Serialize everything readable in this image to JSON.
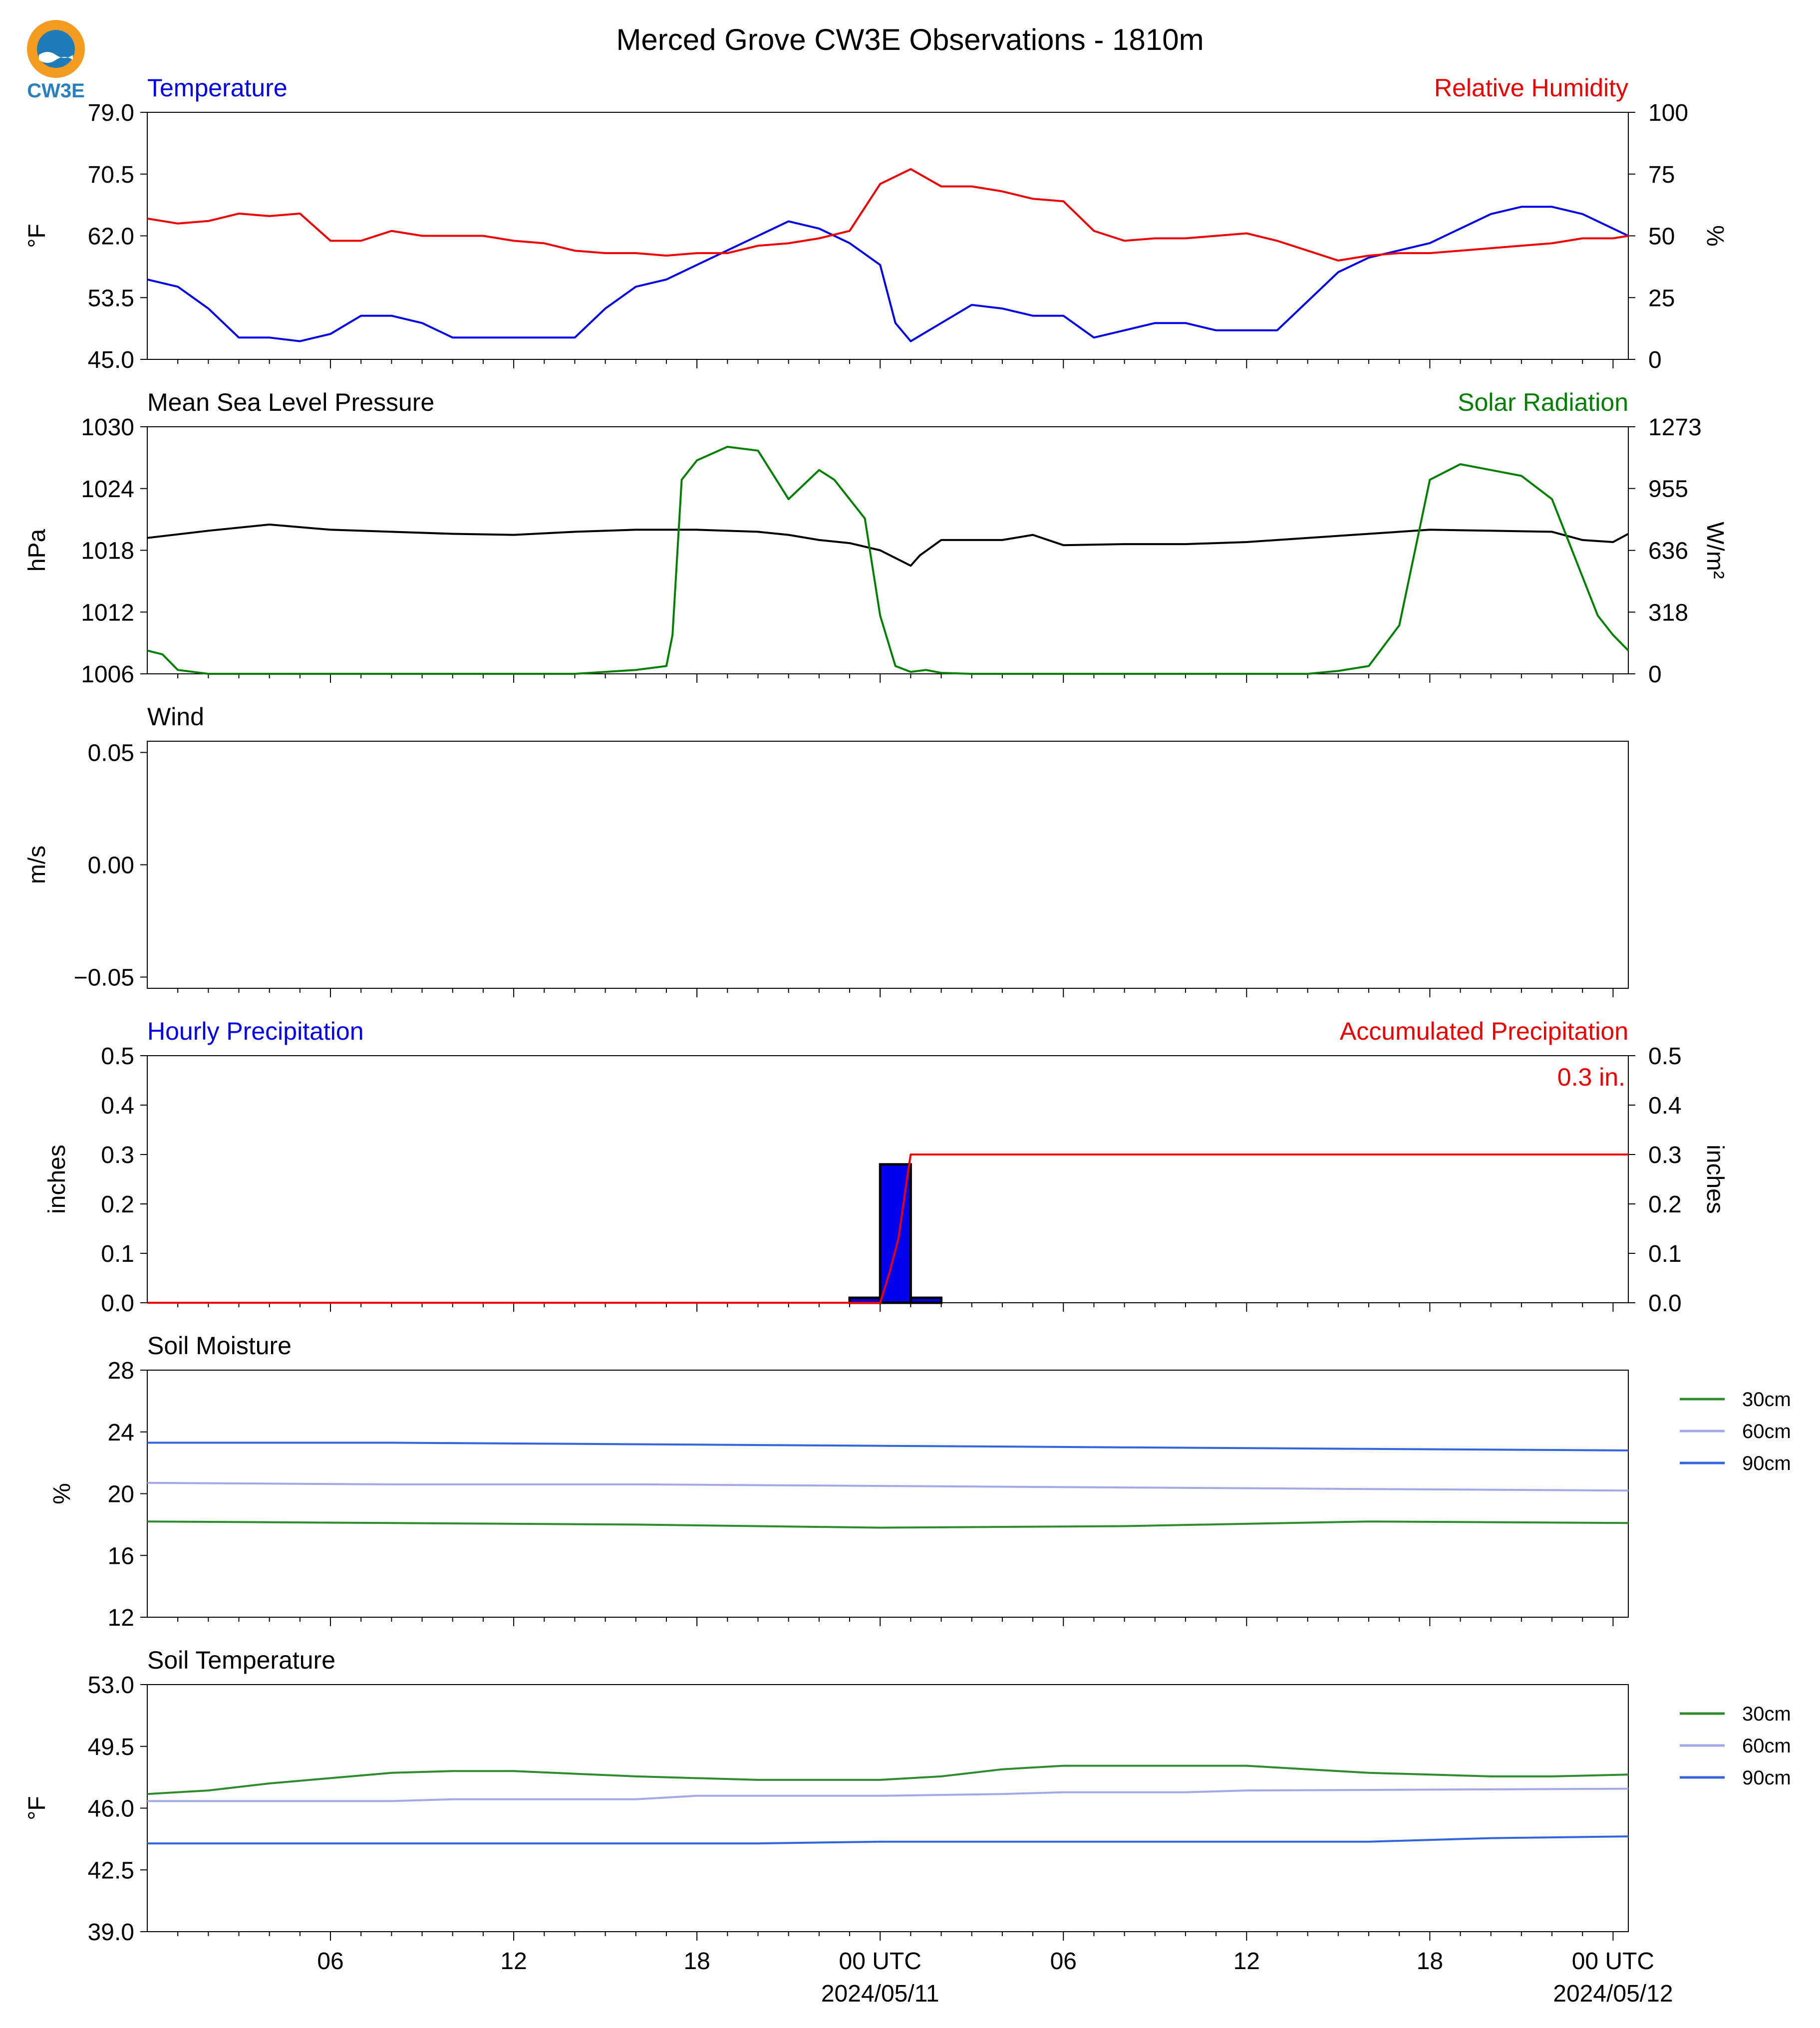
{
  "title": "Merced Grove CW3E Observations - 1810m",
  "logo_text": "CW3E",
  "colors": {
    "temp": "#0000ee",
    "rh": "#ee0000",
    "pressure": "#000000",
    "solar": "#008000",
    "soil30": "#2e8b2e",
    "soil60": "#a3a8e6",
    "soil90": "#3366dd",
    "precip_bar": "#0000ee"
  },
  "x_axis": {
    "start_hour": -2,
    "end_hour": 46.5,
    "ticks": [
      {
        "h": 4,
        "label": "06",
        "sub": ""
      },
      {
        "h": 10,
        "label": "12",
        "sub": ""
      },
      {
        "h": 16,
        "label": "18",
        "sub": ""
      },
      {
        "h": 22,
        "label": "00 UTC",
        "sub": "2024/05/11"
      },
      {
        "h": 28,
        "label": "06",
        "sub": ""
      },
      {
        "h": 34,
        "label": "12",
        "sub": ""
      },
      {
        "h": 40,
        "label": "18",
        "sub": ""
      },
      {
        "h": 46,
        "label": "00 UTC",
        "sub": "2024/05/12"
      }
    ]
  },
  "chart_data": [
    {
      "type": "line",
      "title_left": "Temperature",
      "title_right": "Relative Humidity",
      "ylabel_left": "°F",
      "ylabel_right": "%",
      "ylim_left": [
        45,
        79
      ],
      "yticks_left": [
        "45.0",
        "53.5",
        "62.0",
        "70.5",
        "79.0"
      ],
      "ylim_right": [
        0,
        100
      ],
      "yticks_right": [
        "0",
        "25",
        "50",
        "75",
        "100"
      ],
      "series": [
        {
          "name": "Temperature",
          "axis": "left",
          "color_key": "temp",
          "x": [
            -2,
            -1,
            0,
            1,
            2,
            3,
            4,
            5,
            6,
            7,
            8,
            9,
            10,
            11,
            12,
            13,
            14,
            15,
            16,
            17,
            18,
            19,
            20,
            21,
            22,
            22.5,
            23,
            24,
            25,
            26,
            27,
            28,
            29,
            30,
            31,
            32,
            33,
            34,
            35,
            36,
            37,
            38,
            39,
            40,
            41,
            42,
            43,
            44,
            45,
            46,
            46.5
          ],
          "y": [
            56,
            55,
            52,
            48,
            48,
            47.5,
            48.5,
            51,
            51,
            50,
            48,
            48,
            48,
            48,
            48,
            52,
            55,
            56,
            58,
            60,
            62,
            64,
            63,
            61,
            58,
            50,
            47.5,
            50,
            52.5,
            52,
            51,
            51,
            48,
            49,
            50,
            50,
            49,
            49,
            49,
            53,
            57,
            59,
            60,
            61,
            63,
            65,
            66,
            66,
            65,
            63,
            62
          ]
        },
        {
          "name": "Relative Humidity",
          "axis": "right",
          "color_key": "rh",
          "x": [
            -2,
            -1,
            0,
            1,
            2,
            3,
            4,
            5,
            6,
            7,
            8,
            9,
            10,
            11,
            12,
            13,
            14,
            15,
            16,
            17,
            18,
            19,
            20,
            21,
            22,
            23,
            24,
            25,
            26,
            27,
            28,
            29,
            30,
            31,
            32,
            33,
            34,
            35,
            36,
            37,
            38,
            39,
            40,
            41,
            42,
            43,
            44,
            45,
            46,
            46.5
          ],
          "y": [
            57,
            55,
            56,
            59,
            58,
            59,
            48,
            48,
            52,
            50,
            50,
            50,
            48,
            47,
            44,
            43,
            43,
            42,
            43,
            43,
            46,
            47,
            49,
            52,
            71,
            77,
            70,
            70,
            68,
            65,
            64,
            52,
            48,
            49,
            49,
            50,
            51,
            48,
            44,
            40,
            42,
            43,
            43,
            44,
            45,
            46,
            47,
            49,
            49,
            50
          ]
        }
      ]
    },
    {
      "type": "line",
      "title_left": "Mean Sea Level Pressure",
      "title_right": "Solar Radiation",
      "ylabel_left": "hPa",
      "ylabel_right": "W/m²",
      "ylim_left": [
        1006,
        1030
      ],
      "yticks_left": [
        "1006",
        "1012",
        "1018",
        "1024",
        "1030"
      ],
      "ylim_right": [
        0,
        1273
      ],
      "yticks_right": [
        "0",
        "318",
        "636",
        "955",
        "1273"
      ],
      "series": [
        {
          "name": "Mean Sea Level Pressure",
          "axis": "left",
          "color_key": "pressure",
          "x": [
            -2,
            0,
            2,
            4,
            6,
            8,
            10,
            12,
            14,
            16,
            18,
            19,
            20,
            21,
            22,
            23,
            23.3,
            24,
            26,
            27,
            28,
            30,
            32,
            34,
            36,
            38,
            40,
            42,
            44,
            45,
            46,
            46.5
          ],
          "y": [
            1019.2,
            1019.9,
            1020.5,
            1020,
            1019.8,
            1019.6,
            1019.5,
            1019.8,
            1020,
            1020,
            1019.8,
            1019.5,
            1019,
            1018.7,
            1018,
            1016.5,
            1017.5,
            1019,
            1019,
            1019.5,
            1018.5,
            1018.6,
            1018.6,
            1018.8,
            1019.2,
            1019.6,
            1020,
            1019.9,
            1019.8,
            1019,
            1018.8,
            1019.6
          ]
        },
        {
          "name": "Solar Radiation",
          "axis": "right",
          "color_key": "solar",
          "x": [
            -2,
            -1.5,
            -1,
            0,
            2,
            4,
            6,
            8,
            10,
            12,
            14,
            15,
            15.2,
            15.5,
            16,
            17,
            18,
            19,
            20,
            20.5,
            21,
            21.5,
            22,
            22.5,
            23,
            23.5,
            24,
            25,
            28,
            30,
            32,
            34,
            36,
            37,
            38,
            39,
            40,
            41,
            42,
            43,
            44,
            45,
            45.5,
            46,
            46.5
          ],
          "y": [
            120,
            100,
            20,
            0,
            0,
            0,
            0,
            0,
            0,
            0,
            20,
            40,
            200,
            1000,
            1100,
            1170,
            1150,
            900,
            1050,
            1000,
            900,
            800,
            300,
            40,
            10,
            20,
            5,
            0,
            0,
            0,
            0,
            0,
            0,
            15,
            40,
            250,
            1000,
            1080,
            1050,
            1020,
            900,
            500,
            300,
            200,
            120
          ]
        }
      ]
    },
    {
      "type": "line",
      "title_left": "Wind",
      "ylabel_left": "m/s",
      "ylim_left": [
        -0.055,
        0.055
      ],
      "yticks_left": [
        "−0.05",
        "0.00",
        "0.05"
      ],
      "yvals_left": [
        -0.05,
        0,
        0.05
      ],
      "series": []
    },
    {
      "type": "bar",
      "title_left": "Hourly Precipitation",
      "title_right": "Accumulated Precipitation",
      "annotation": "0.3 in.",
      "ylabel_left": "inches",
      "ylabel_right": "inches",
      "ylim_left": [
        0,
        0.5
      ],
      "yticks_left": [
        "0.0",
        "0.1",
        "0.2",
        "0.3",
        "0.4",
        "0.5"
      ],
      "ylim_right": [
        0,
        0.5
      ],
      "yticks_right": [
        "0.0",
        "0.1",
        "0.2",
        "0.3",
        "0.4",
        "0.5"
      ],
      "bars": [
        {
          "start": 21,
          "end": 22,
          "value": 0.01
        },
        {
          "start": 22,
          "end": 23,
          "value": 0.28
        },
        {
          "start": 23,
          "end": 24,
          "value": 0.01
        }
      ],
      "series": [
        {
          "name": "Accumulated Precipitation",
          "axis": "right",
          "color_key": "rh",
          "x": [
            -2,
            22,
            22.3,
            22.6,
            22.9,
            23,
            46.5
          ],
          "y": [
            0,
            0,
            0.06,
            0.13,
            0.26,
            0.3,
            0.3
          ]
        }
      ]
    },
    {
      "type": "line",
      "title_left": "Soil Moisture",
      "ylabel_left": "%",
      "ylim_left": [
        12,
        28
      ],
      "yticks_left": [
        "12",
        "16",
        "20",
        "24",
        "28"
      ],
      "legend": [
        "30cm",
        "60cm",
        "90cm"
      ],
      "series": [
        {
          "name": "30cm",
          "color_key": "soil30",
          "x": [
            -2,
            6,
            14,
            22,
            30,
            38,
            46.5
          ],
          "y": [
            18.2,
            18.1,
            18.0,
            17.8,
            17.9,
            18.2,
            18.1
          ]
        },
        {
          "name": "60cm",
          "color_key": "soil60",
          "x": [
            -2,
            6,
            14,
            22,
            30,
            38,
            46.5
          ],
          "y": [
            20.7,
            20.6,
            20.6,
            20.5,
            20.4,
            20.3,
            20.2
          ]
        },
        {
          "name": "90cm",
          "color_key": "soil90",
          "x": [
            -2,
            6,
            14,
            22,
            30,
            38,
            46.5
          ],
          "y": [
            23.3,
            23.3,
            23.2,
            23.1,
            23.0,
            22.9,
            22.8
          ]
        }
      ]
    },
    {
      "type": "line",
      "title_left": "Soil Temperature",
      "ylabel_left": "°F",
      "ylim_left": [
        39,
        53
      ],
      "yticks_left": [
        "39.0",
        "42.5",
        "46.0",
        "49.5",
        "53.0"
      ],
      "legend": [
        "30cm",
        "60cm",
        "90cm"
      ],
      "series": [
        {
          "name": "30cm",
          "color_key": "soil30",
          "x": [
            -2,
            0,
            2,
            4,
            6,
            8,
            10,
            14,
            18,
            22,
            24,
            26,
            28,
            32,
            34,
            36,
            38,
            40,
            42,
            44,
            46.5
          ],
          "y": [
            46.8,
            47,
            47.4,
            47.7,
            48,
            48.1,
            48.1,
            47.8,
            47.6,
            47.6,
            47.8,
            48.2,
            48.4,
            48.4,
            48.4,
            48.2,
            48,
            47.9,
            47.8,
            47.8,
            47.9
          ]
        },
        {
          "name": "60cm",
          "color_key": "soil60",
          "x": [
            -2,
            6,
            8,
            14,
            16,
            22,
            26,
            28,
            32,
            34,
            46.5
          ],
          "y": [
            46.4,
            46.4,
            46.5,
            46.5,
            46.7,
            46.7,
            46.8,
            46.9,
            46.9,
            47,
            47.1
          ]
        },
        {
          "name": "90cm",
          "color_key": "soil90",
          "x": [
            -2,
            18,
            22,
            24,
            28,
            36,
            38,
            42,
            46.5
          ],
          "y": [
            44,
            44,
            44.1,
            44.1,
            44.1,
            44.1,
            44.1,
            44.3,
            44.4
          ]
        }
      ]
    }
  ]
}
